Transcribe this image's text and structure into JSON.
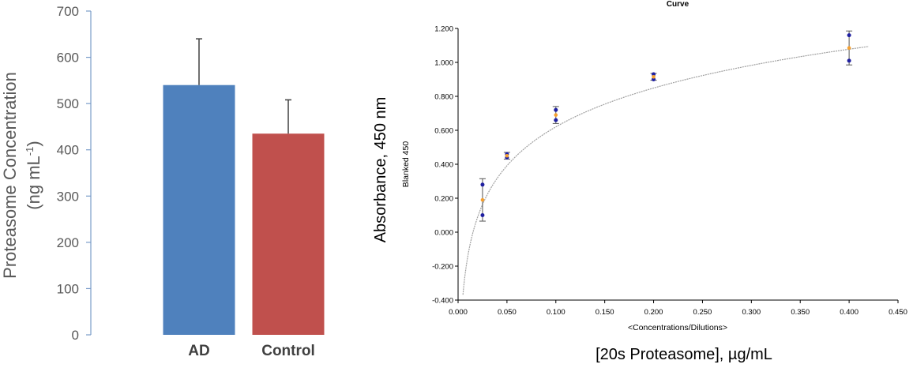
{
  "chart_data": [
    {
      "type": "bar",
      "categories": [
        "AD",
        "Control"
      ],
      "values": [
        540,
        435
      ],
      "errors": [
        100,
        73
      ],
      "colors": [
        "#4F81BD",
        "#C0504D"
      ],
      "ylabel_line1": "Proteasome Concentration",
      "ylabel_line2_main": "(ng mL",
      "ylabel_line2_sup": "-1",
      "ylabel_line2_end": ")",
      "ylim": [
        0,
        700
      ],
      "yticks": [
        "0",
        "100",
        "200",
        "300",
        "400",
        "500",
        "600",
        "700"
      ],
      "grid": false
    },
    {
      "type": "scatter",
      "title": "Curve",
      "xlabel": "<Concentrations/Dilutions>",
      "ylabel": "Blanked 450",
      "outer_xlabel": "[20s Proteasome],  µg/mL",
      "outer_ylabel": "Absorbance,  450 nm",
      "xlim": [
        0,
        0.45
      ],
      "ylim": [
        -0.4,
        1.2
      ],
      "xticks": [
        "0.000",
        "0.050",
        "0.100",
        "0.150",
        "0.200",
        "0.250",
        "0.300",
        "0.350",
        "0.400",
        "0.450"
      ],
      "yticks": [
        "-0.400",
        "-0.200",
        "0.000",
        "0.200",
        "0.400",
        "0.600",
        "0.800",
        "1.000",
        "1.200"
      ],
      "replicates": {
        "x": [
          0.025,
          0.025,
          0.05,
          0.05,
          0.1,
          0.1,
          0.2,
          0.2,
          0.4,
          0.4
        ],
        "y": [
          0.28,
          0.1,
          0.46,
          0.44,
          0.72,
          0.66,
          0.93,
          0.9,
          1.16,
          1.01
        ],
        "color": "#1f1fa0"
      },
      "means": {
        "x": [
          0.025,
          0.05,
          0.1,
          0.2,
          0.4
        ],
        "y": [
          0.19,
          0.45,
          0.69,
          0.915,
          1.085
        ],
        "err": [
          0.125,
          0.02,
          0.05,
          0.02,
          0.1
        ],
        "color": "#F5A030"
      },
      "fit_curve_color": "#a0a0a0",
      "grid": false
    }
  ]
}
